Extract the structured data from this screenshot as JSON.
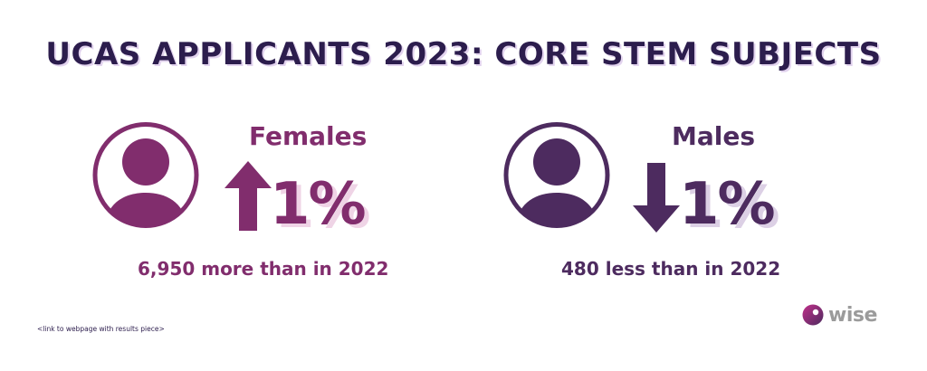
{
  "title": "UCAS APPLICANTS 2023: CORE STEM SUBJECTS",
  "females": {
    "label": "Females",
    "change": "1%",
    "direction": "up",
    "caption": "6,950 more than in 2022",
    "color": "#812d6d",
    "icon": "person-icon"
  },
  "males": {
    "label": "Males",
    "change": "1%",
    "direction": "down",
    "caption": "480 less than in 2022",
    "color": "#4d2b5f",
    "icon": "person-icon"
  },
  "footer": {
    "link_note": "<link to webpage with results piece>",
    "logo_text": "wise"
  },
  "colors": {
    "title": "#2c1d4d",
    "title_shadow": "#e2d3ee",
    "pct_shadow": "#efd4e6",
    "logo_text": "#9b9b9b"
  }
}
